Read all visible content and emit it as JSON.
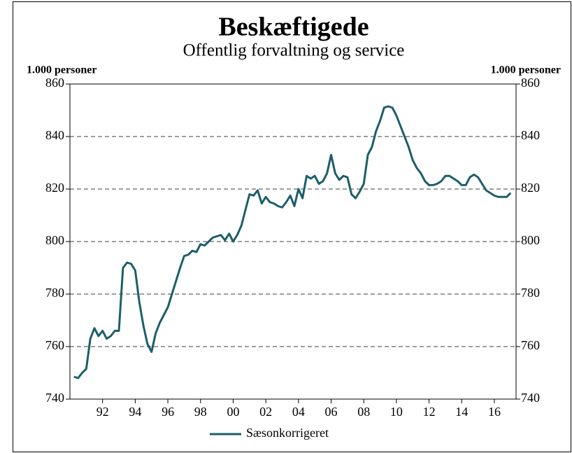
{
  "chart_data": {
    "type": "line",
    "title": "Beskæftigede",
    "subtitle": "Offentlig forvaltning og service",
    "ylabel": "1.000 personer",
    "y2label": "1.000 personer",
    "x": [
      1990.25,
      1990.5,
      1990.75,
      1991,
      1991.25,
      1991.5,
      1991.75,
      1992,
      1992.25,
      1992.5,
      1992.75,
      1993,
      1993.25,
      1993.5,
      1993.75,
      1994,
      1994.25,
      1994.5,
      1994.75,
      1995,
      1995.25,
      1995.5,
      1995.75,
      1996,
      1996.25,
      1996.5,
      1996.75,
      1997,
      1997.25,
      1997.5,
      1997.75,
      1998,
      1998.25,
      1998.5,
      1998.75,
      1999,
      1999.25,
      1999.5,
      1999.75,
      2000,
      2000.25,
      2000.5,
      2000.75,
      2001,
      2001.25,
      2001.5,
      2001.75,
      2002,
      2002.25,
      2002.5,
      2002.75,
      2003,
      2003.25,
      2003.5,
      2003.75,
      2004,
      2004.25,
      2004.5,
      2004.75,
      2005,
      2005.25,
      2005.5,
      2005.75,
      2006,
      2006.25,
      2006.5,
      2006.75,
      2007,
      2007.25,
      2007.5,
      2007.75,
      2008,
      2008.25,
      2008.5,
      2008.75,
      2009,
      2009.25,
      2009.5,
      2009.75,
      2010,
      2010.25,
      2010.5,
      2010.75,
      2011,
      2011.25,
      2011.5,
      2011.75,
      2012,
      2012.25,
      2012.5,
      2012.75,
      2013,
      2013.25,
      2013.5,
      2013.75,
      2014,
      2014.25,
      2014.5,
      2014.75,
      2015,
      2015.25,
      2015.5,
      2015.75,
      2016,
      2016.25,
      2016.5,
      2016.75,
      2017
    ],
    "series": [
      {
        "name": "Sæsonkorrigeret",
        "color": "#1d5e6a",
        "values": [
          748.5,
          748,
          750,
          751.5,
          763,
          767,
          764,
          766,
          763,
          764,
          766,
          766,
          790,
          792,
          791.5,
          789,
          777,
          768,
          761,
          758,
          765,
          769,
          772,
          775,
          780,
          785,
          790,
          794.5,
          795,
          796.5,
          796,
          799,
          798.5,
          800,
          801.5,
          802,
          802.5,
          800.5,
          803,
          800,
          802.5,
          806,
          812,
          818,
          817.5,
          819.5,
          814.5,
          817,
          815,
          814.5,
          813.5,
          813,
          815,
          817.5,
          813.5,
          820,
          816.5,
          825,
          824,
          825,
          822,
          823,
          826,
          833,
          826,
          823.5,
          825,
          824.5,
          818,
          816.5,
          819,
          822,
          833,
          836,
          842,
          846,
          851,
          851.5,
          851,
          848,
          844,
          840,
          836,
          831,
          828,
          826,
          823,
          821.5,
          821.5,
          822,
          823,
          825,
          825,
          824,
          823,
          821.5,
          821.5,
          824.5,
          825.5,
          824.5,
          822,
          819.5,
          818.5,
          817.5,
          817,
          817,
          817,
          818.5
        ]
      }
    ],
    "xlim": [
      1990,
      2017.33
    ],
    "xticks": [
      {
        "value": 1992,
        "label": "92"
      },
      {
        "value": 1994,
        "label": "94"
      },
      {
        "value": 1996,
        "label": "96"
      },
      {
        "value": 1998,
        "label": "98"
      },
      {
        "value": 2000,
        "label": "00"
      },
      {
        "value": 2002,
        "label": "02"
      },
      {
        "value": 2004,
        "label": "04"
      },
      {
        "value": 2006,
        "label": "06"
      },
      {
        "value": 2008,
        "label": "08"
      },
      {
        "value": 2010,
        "label": "10"
      },
      {
        "value": 2012,
        "label": "12"
      },
      {
        "value": 2014,
        "label": "14"
      },
      {
        "value": 2016,
        "label": "16"
      }
    ],
    "ylim": [
      740,
      860
    ],
    "yticks": [
      740,
      760,
      780,
      800,
      820,
      840,
      860
    ],
    "y2lim": [
      740,
      860
    ],
    "y2ticks": [
      740,
      760,
      780,
      800,
      820,
      840,
      860
    ],
    "grid": true,
    "legend": "bottom"
  }
}
